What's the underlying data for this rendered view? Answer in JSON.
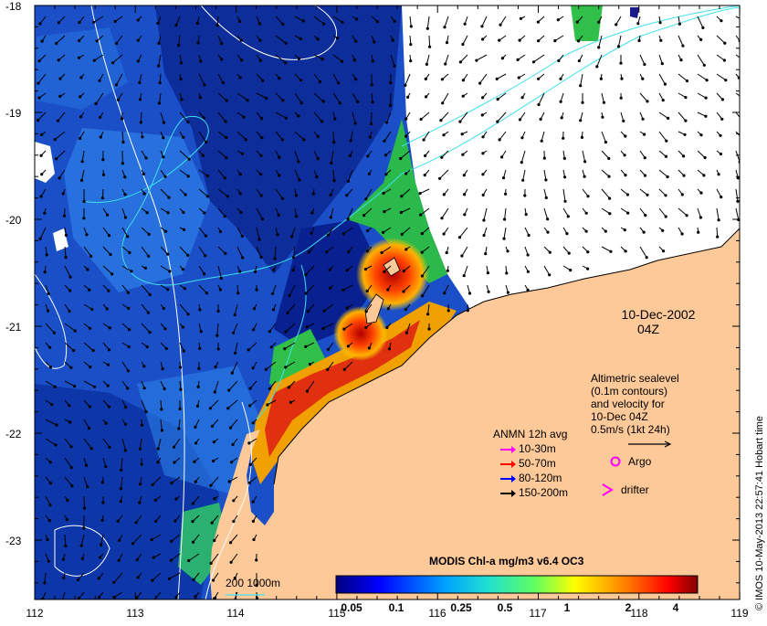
{
  "map": {
    "date": "10-Dec-2002",
    "time": "04Z",
    "lat_ticks": [
      "-18",
      "-19",
      "-20",
      "-21",
      "-22",
      "-23"
    ],
    "lon_ticks": [
      "112",
      "113",
      "114",
      "115",
      "116",
      "117",
      "118",
      "119"
    ],
    "altimetry_note": [
      "Altimetric sealevel",
      "(0.1m contours)",
      "and velocity for",
      "10-Dec 04Z",
      "0.5m/s (1kt 24h)"
    ],
    "anmn": {
      "title": "ANMN 12h avg",
      "rows": [
        {
          "label": "10-30m",
          "color": "#ff00ff"
        },
        {
          "label": "50-70m",
          "color": "#ff0000"
        },
        {
          "label": "80-120m",
          "color": "#0000ff"
        },
        {
          "label": "150-200m",
          "color": "#000000"
        }
      ]
    },
    "argo_label": "Argo",
    "drifter_label": "drifter",
    "colorbar": {
      "title": "MODIS Chl-a mg/m3 v6.4 OC3",
      "ticks": [
        "0.05",
        "0.1",
        "0.25",
        "0.5",
        "1",
        "2",
        "4"
      ]
    },
    "bathymetry_scale_label": "200 1000m",
    "credit": "© IMOS 10-May-2013 22:57:41 Hobart time",
    "colors": {
      "land": "#fdc998",
      "deep_ocean": "#0a2a9e",
      "mid_ocean": "#1d5bd6",
      "coastal_high": "#c01010",
      "cloud_gap": "#ffffff",
      "contour": "#3fe0ea"
    }
  }
}
